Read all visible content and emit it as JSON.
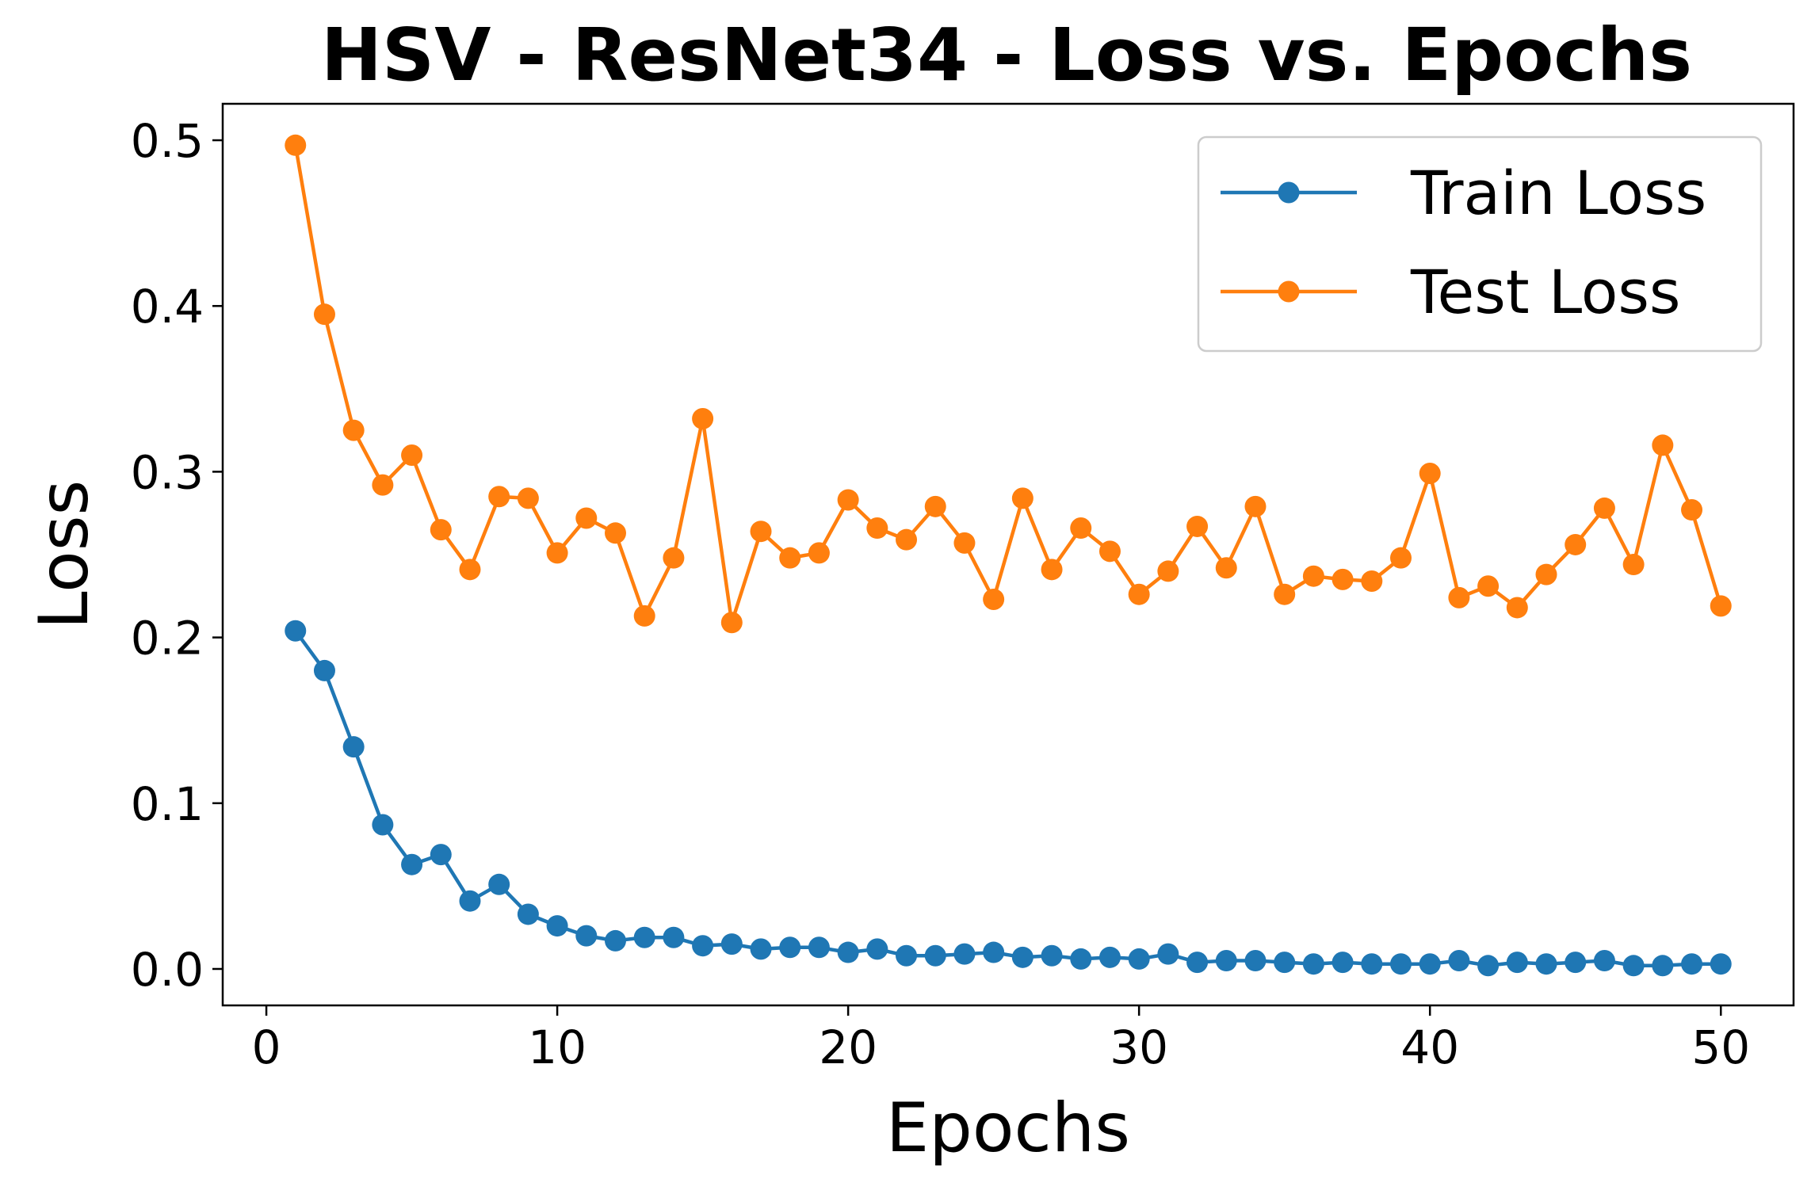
{
  "chart_data": {
    "type": "line",
    "title": "HSV - ResNet34 - Loss vs. Epochs",
    "xlabel": "Epochs",
    "ylabel": "Loss",
    "xlim": [
      -1.5,
      52.5
    ],
    "ylim": [
      -0.022,
      0.522
    ],
    "xticks": [
      0,
      10,
      20,
      30,
      40,
      50
    ],
    "xtick_labels": [
      "0",
      "10",
      "20",
      "30",
      "40",
      "50"
    ],
    "yticks": [
      0.0,
      0.1,
      0.2,
      0.3,
      0.4,
      0.5
    ],
    "ytick_labels": [
      "0.0",
      "0.1",
      "0.2",
      "0.3",
      "0.4",
      "0.5"
    ],
    "grid": false,
    "legend_position": "top-right",
    "x": [
      1,
      2,
      3,
      4,
      5,
      6,
      7,
      8,
      9,
      10,
      11,
      12,
      13,
      14,
      15,
      16,
      17,
      18,
      19,
      20,
      21,
      22,
      23,
      24,
      25,
      26,
      27,
      28,
      29,
      30,
      31,
      32,
      33,
      34,
      35,
      36,
      37,
      38,
      39,
      40,
      41,
      42,
      43,
      44,
      45,
      46,
      47,
      48,
      49,
      50
    ],
    "series": [
      {
        "name": "Train Loss",
        "color": "#1f77b4",
        "values": [
          0.204,
          0.18,
          0.134,
          0.087,
          0.063,
          0.069,
          0.041,
          0.051,
          0.033,
          0.026,
          0.02,
          0.017,
          0.019,
          0.019,
          0.014,
          0.015,
          0.012,
          0.013,
          0.013,
          0.01,
          0.012,
          0.008,
          0.008,
          0.009,
          0.01,
          0.007,
          0.008,
          0.006,
          0.007,
          0.006,
          0.009,
          0.004,
          0.005,
          0.005,
          0.004,
          0.003,
          0.004,
          0.003,
          0.003,
          0.003,
          0.005,
          0.002,
          0.004,
          0.003,
          0.004,
          0.005,
          0.002,
          0.002,
          0.003,
          0.003
        ]
      },
      {
        "name": "Test Loss",
        "color": "#ff7f0e",
        "values": [
          0.497,
          0.395,
          0.325,
          0.292,
          0.31,
          0.265,
          0.241,
          0.285,
          0.284,
          0.251,
          0.272,
          0.263,
          0.213,
          0.248,
          0.332,
          0.209,
          0.264,
          0.248,
          0.251,
          0.283,
          0.266,
          0.259,
          0.279,
          0.257,
          0.223,
          0.284,
          0.241,
          0.266,
          0.252,
          0.226,
          0.24,
          0.267,
          0.242,
          0.279,
          0.226,
          0.237,
          0.235,
          0.234,
          0.248,
          0.299,
          0.224,
          0.231,
          0.218,
          0.238,
          0.256,
          0.278,
          0.244,
          0.316,
          0.277,
          0.219
        ]
      }
    ]
  }
}
